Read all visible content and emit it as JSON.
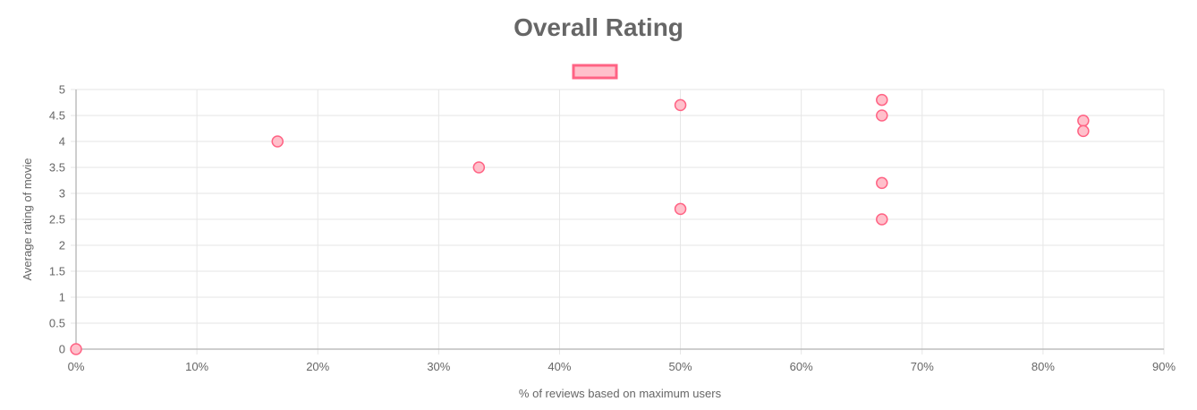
{
  "chart_data": {
    "type": "scatter",
    "title": "Overall Rating",
    "xlabel": "% of reviews based on maximum users",
    "ylabel": "Average rating of movie",
    "xlim": [
      0,
      90
    ],
    "ylim": [
      0,
      5
    ],
    "x_ticks": [
      0,
      10,
      20,
      30,
      40,
      50,
      60,
      70,
      80,
      90
    ],
    "x_tick_labels": [
      "0%",
      "10%",
      "20%",
      "30%",
      "40%",
      "50%",
      "60%",
      "70%",
      "80%",
      "90%"
    ],
    "y_ticks": [
      0,
      0.5,
      1,
      1.5,
      2,
      2.5,
      3,
      3.5,
      4,
      4.5,
      5
    ],
    "y_tick_labels": [
      "0",
      "0.5",
      "1",
      "1.5",
      "2",
      "2.5",
      "3",
      "3.5",
      "4",
      "4.5",
      "5"
    ],
    "grid": true,
    "legend": {
      "position": "top-center",
      "label": ""
    },
    "colors": {
      "point_fill": "#ffc0cb",
      "point_stroke": "#ff6384",
      "legend_fill": "#ffc0cb",
      "legend_stroke": "#ff6384"
    },
    "series": [
      {
        "points": [
          {
            "x": 0,
            "y": 0
          },
          {
            "x": 16.67,
            "y": 4.0
          },
          {
            "x": 33.33,
            "y": 3.5
          },
          {
            "x": 50,
            "y": 4.7
          },
          {
            "x": 50,
            "y": 2.7
          },
          {
            "x": 66.67,
            "y": 4.8
          },
          {
            "x": 66.67,
            "y": 4.5
          },
          {
            "x": 66.67,
            "y": 3.2
          },
          {
            "x": 66.67,
            "y": 2.5
          },
          {
            "x": 83.33,
            "y": 4.4
          },
          {
            "x": 83.33,
            "y": 4.2
          }
        ]
      }
    ]
  }
}
